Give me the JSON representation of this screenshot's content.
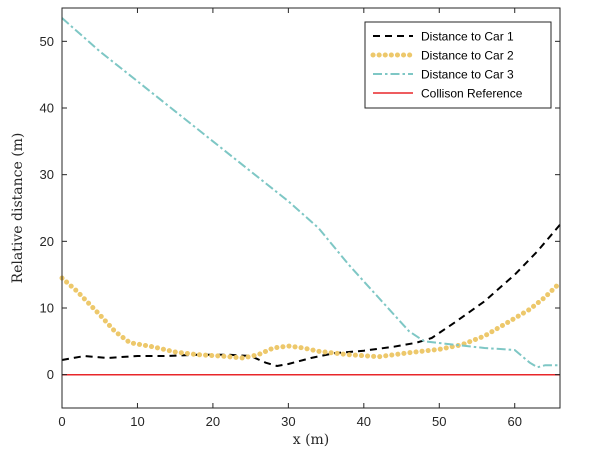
{
  "chart_data": {
    "type": "line",
    "title": "",
    "xlabel": "x (m)",
    "ylabel": "Relative distance (m)",
    "xlim": [
      0,
      66
    ],
    "ylim": [
      -5,
      55
    ],
    "xticks": [
      0,
      10,
      20,
      30,
      40,
      50,
      60
    ],
    "yticks": [
      0,
      10,
      20,
      30,
      40,
      50
    ],
    "grid": false,
    "legend_position": "top-right",
    "series": [
      {
        "name": "Distance to Car 1",
        "color": "#000000",
        "style": "dashed",
        "points": [
          [
            0,
            2.2
          ],
          [
            3,
            2.8
          ],
          [
            6,
            2.5
          ],
          [
            10,
            2.8
          ],
          [
            14,
            2.8
          ],
          [
            18,
            3.0
          ],
          [
            22,
            3.0
          ],
          [
            25,
            2.8
          ],
          [
            27,
            1.8
          ],
          [
            28.5,
            1.3
          ],
          [
            30,
            1.6
          ],
          [
            33,
            2.5
          ],
          [
            36,
            3.2
          ],
          [
            40,
            3.6
          ],
          [
            44,
            4.2
          ],
          [
            47,
            4.8
          ],
          [
            49,
            5.5
          ],
          [
            52,
            7.8
          ],
          [
            56,
            11.0
          ],
          [
            60,
            15.0
          ],
          [
            63,
            18.5
          ],
          [
            66,
            22.5
          ]
        ]
      },
      {
        "name": "Distance to Car 2",
        "color": "#EDC86B",
        "style": "dotted",
        "points": [
          [
            0,
            14.5
          ],
          [
            2,
            12.5
          ],
          [
            5,
            9.0
          ],
          [
            7,
            6.5
          ],
          [
            9,
            4.8
          ],
          [
            12,
            4.2
          ],
          [
            15,
            3.4
          ],
          [
            18,
            3.0
          ],
          [
            21,
            2.8
          ],
          [
            24,
            2.5
          ],
          [
            26,
            3.0
          ],
          [
            28,
            4.0
          ],
          [
            30,
            4.3
          ],
          [
            32,
            4.0
          ],
          [
            34,
            3.5
          ],
          [
            38,
            3.0
          ],
          [
            42,
            2.7
          ],
          [
            46,
            3.3
          ],
          [
            50,
            3.8
          ],
          [
            53,
            4.5
          ],
          [
            56,
            5.8
          ],
          [
            59,
            7.8
          ],
          [
            62,
            9.8
          ],
          [
            64,
            11.6
          ],
          [
            66,
            13.8
          ]
        ]
      },
      {
        "name": "Distance to Car 3",
        "color": "#7EC7C5",
        "style": "dashdot",
        "points": [
          [
            0,
            53.5
          ],
          [
            5,
            48.5
          ],
          [
            10,
            44.0
          ],
          [
            15,
            39.5
          ],
          [
            20,
            35.0
          ],
          [
            25,
            30.5
          ],
          [
            30,
            26.0
          ],
          [
            34,
            22.0
          ],
          [
            38,
            16.5
          ],
          [
            42,
            11.5
          ],
          [
            46,
            6.5
          ],
          [
            48,
            5.0
          ],
          [
            52,
            4.5
          ],
          [
            56,
            4.0
          ],
          [
            60,
            3.7
          ],
          [
            62,
            1.8
          ],
          [
            63,
            1.1
          ],
          [
            64,
            1.4
          ],
          [
            66,
            1.4
          ]
        ]
      },
      {
        "name": "Collison Reference",
        "color": "#E8262A",
        "style": "solid",
        "points": [
          [
            0,
            0
          ],
          [
            66,
            0
          ]
        ]
      }
    ]
  }
}
